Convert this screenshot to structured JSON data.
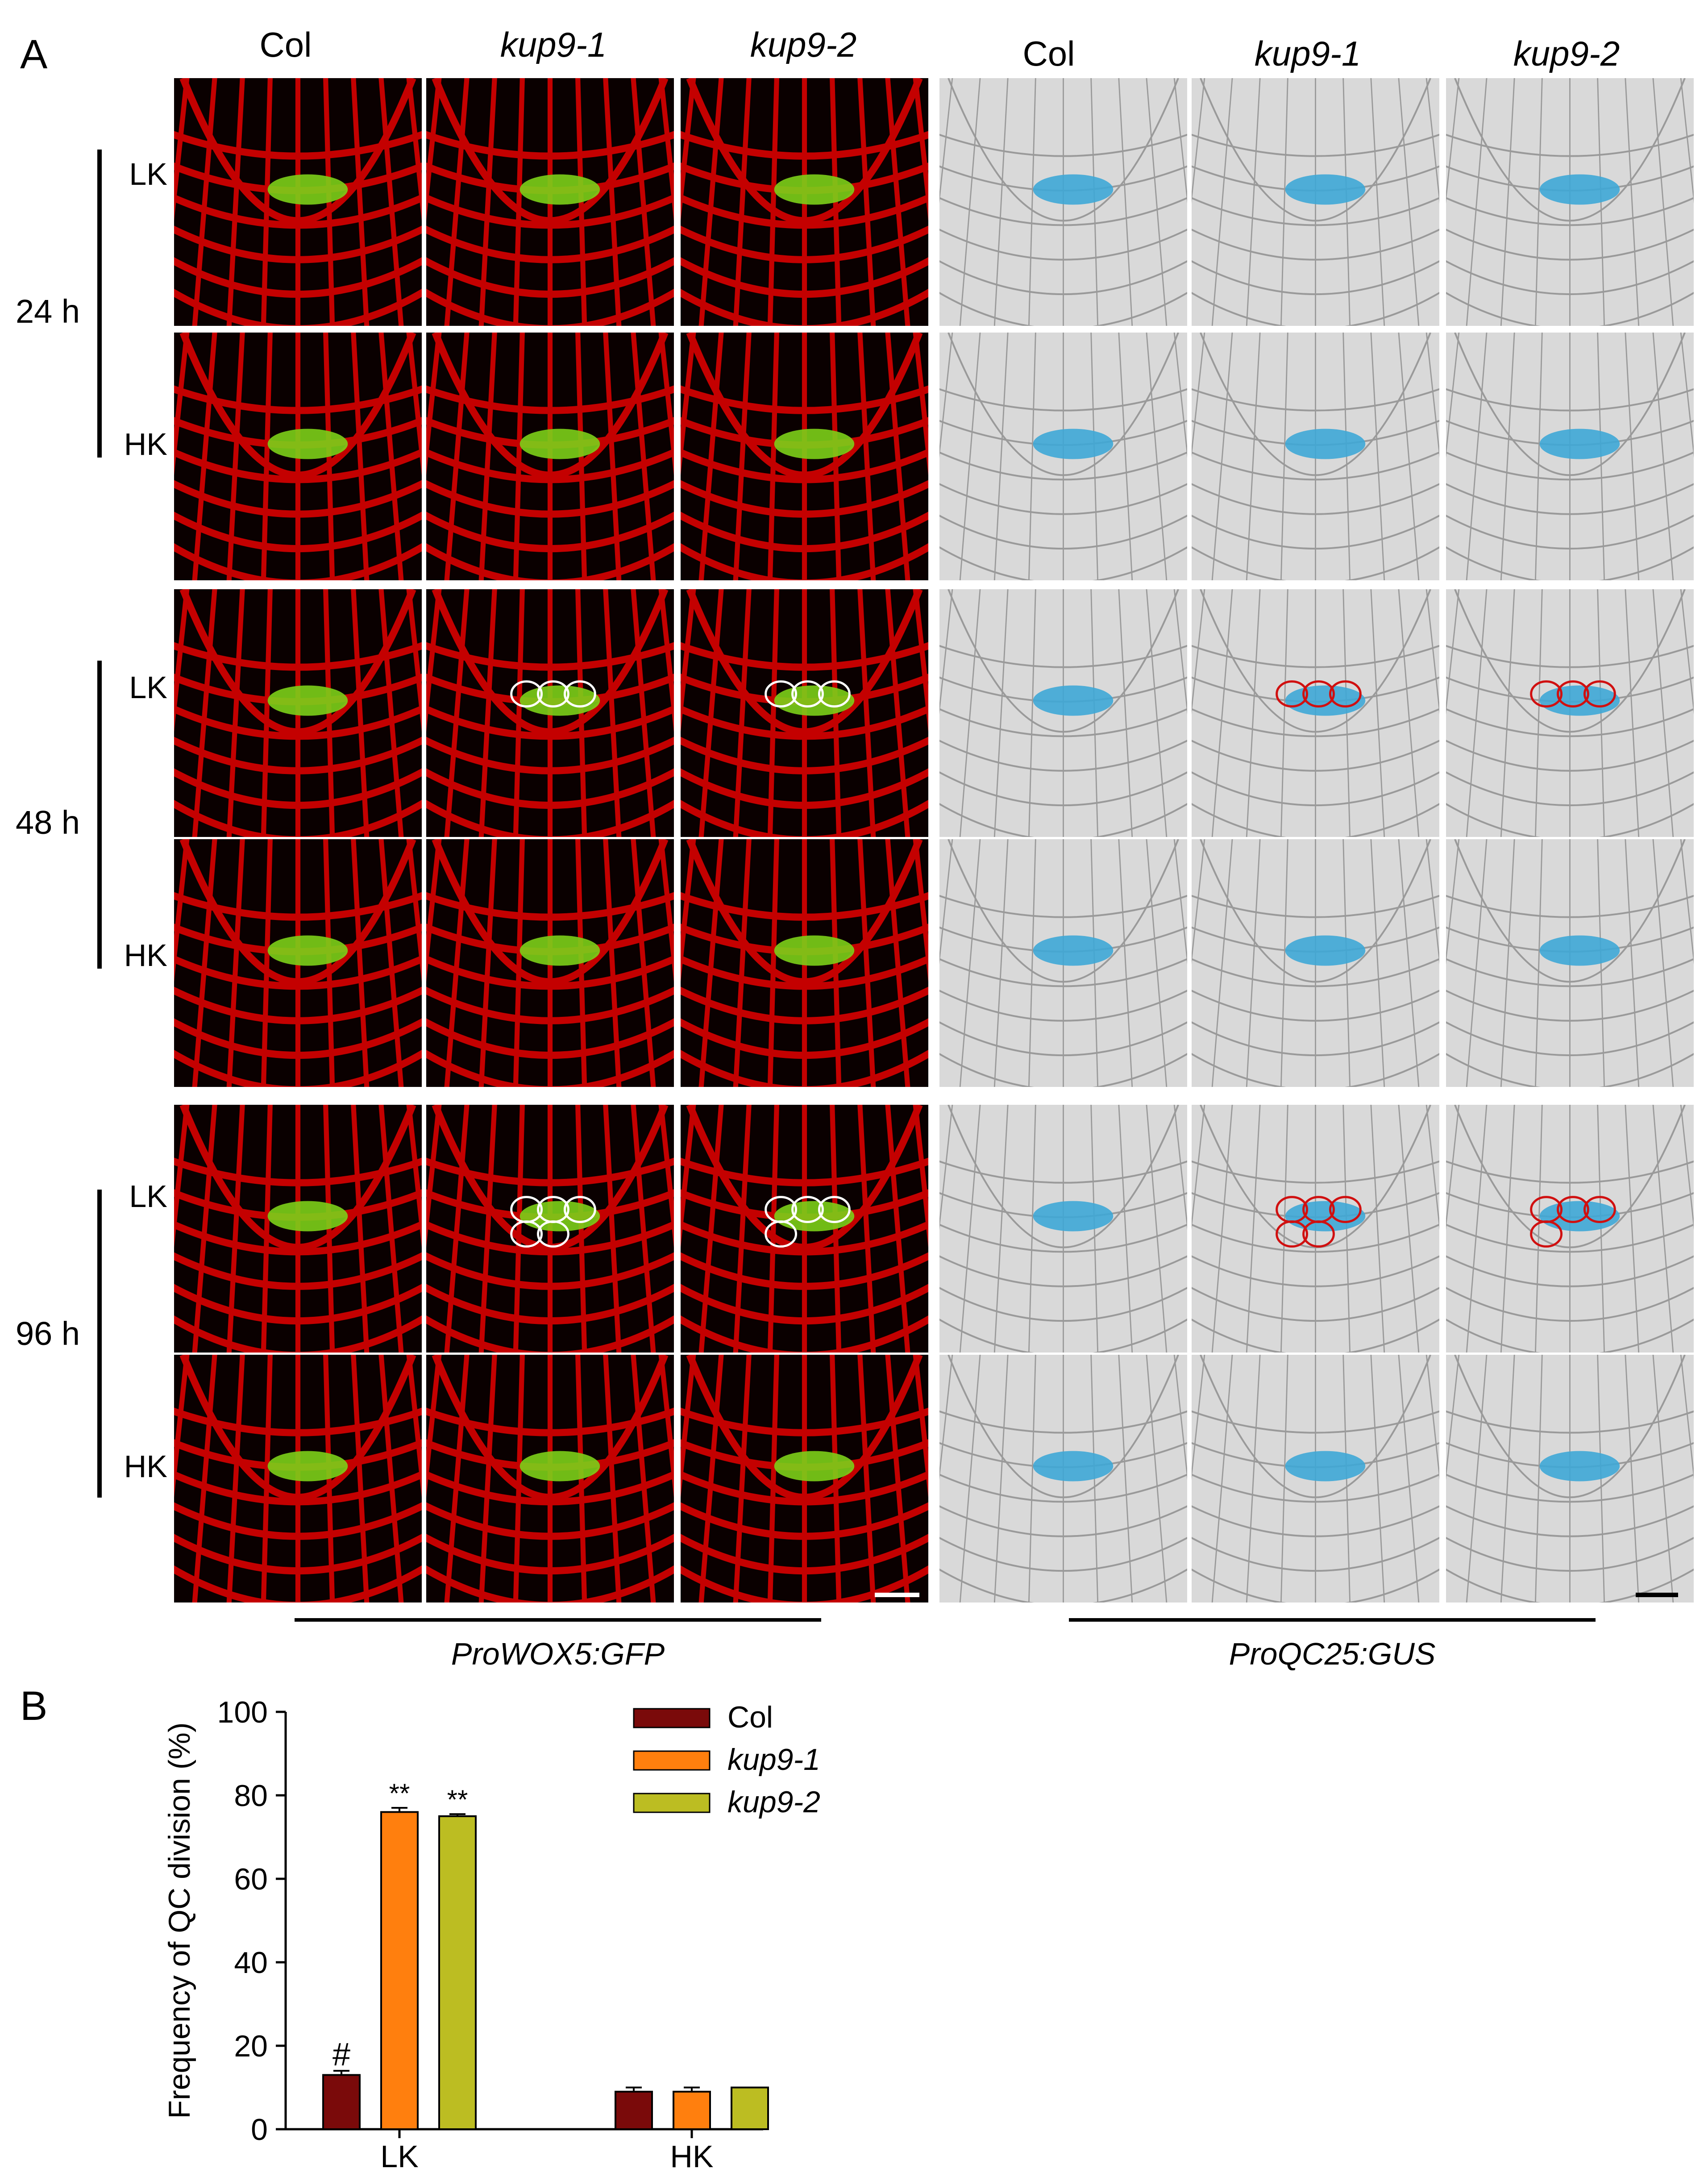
{
  "panel_a": {
    "letter": "A",
    "gfp_headers": [
      "Col",
      "kup9-1",
      "kup9-2"
    ],
    "gus_headers": [
      "Col",
      "kup9-1",
      "kup9-2"
    ],
    "timepoints": [
      {
        "time": "24 h",
        "rows": [
          "LK",
          "HK"
        ]
      },
      {
        "time": "48 h",
        "rows": [
          "LK",
          "HK"
        ]
      },
      {
        "time": "96 h",
        "rows": [
          "LK",
          "HK"
        ]
      }
    ],
    "gfp_caption": "ProWOX5:GFP",
    "gus_caption": "ProQC25:GUS",
    "colors": {
      "gfp_background": "#c40000",
      "gfp_signal": "#7ccf18",
      "gus_background": "#d9d9d9",
      "gus_signal": "#3ea7d6",
      "outline_gfp": "#ffffff",
      "outline_gus": "#d01010"
    }
  },
  "panel_b": {
    "letter": "B"
  },
  "chart_data": {
    "type": "bar",
    "ylabel": "Frequency of QC division (%)",
    "xlabel": "",
    "ylim": [
      0,
      100
    ],
    "yticks": [
      0,
      20,
      40,
      60,
      80,
      100
    ],
    "categories": [
      "LK",
      "HK"
    ],
    "series": [
      {
        "name": "Col",
        "color": "#7a0a0a",
        "values": [
          13,
          9
        ],
        "errors": [
          1,
          1
        ],
        "marks": [
          "#",
          ""
        ]
      },
      {
        "name": "kup9-1",
        "color": "#ff7f0e",
        "values": [
          76,
          9
        ],
        "errors": [
          1,
          1
        ],
        "marks": [
          "**",
          ""
        ]
      },
      {
        "name": "kup9-2",
        "color": "#bcbd22",
        "values": [
          75,
          10
        ],
        "errors": [
          0.5,
          0
        ],
        "marks": [
          "**",
          ""
        ]
      }
    ],
    "legend_position": "top-right"
  }
}
